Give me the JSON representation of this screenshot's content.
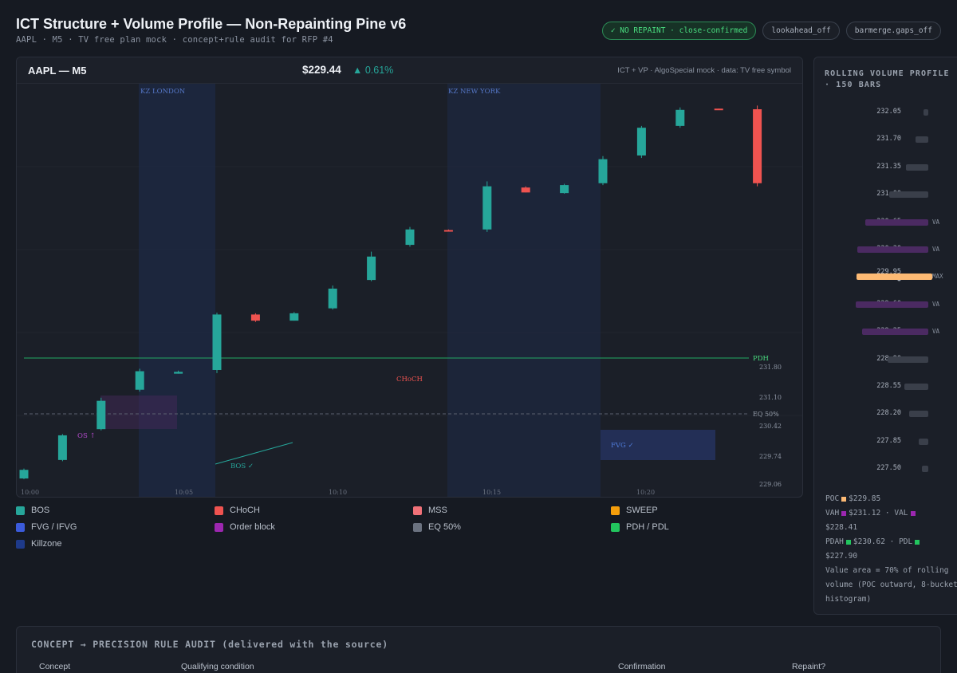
{
  "header": {
    "title": "ICT Structure + Volume Profile — Non-Repainting Pine v6",
    "subtitle": "AAPL · M5 · TV free plan mock · concept+rule audit for RFP #4",
    "pills": [
      "✓ NO REPAINT · close-confirmed",
      "lookahead_off",
      "barmerge.gaps_off"
    ]
  },
  "chart": {
    "symbol": "AAPL — M5",
    "price": "$229.44",
    "change": "▲ 0.61%",
    "meta": "ICT + VP · AlgoSpecial mock · data: TV free symbol"
  },
  "chart_data": {
    "type": "candlestick",
    "time_labels": [
      "10:00",
      "10:05",
      "10:10",
      "10:15",
      "10:20"
    ],
    "y_tick_labels": [
      "231.80",
      "231.10",
      "230.42",
      "229.74",
      "229.06"
    ],
    "killzones": [
      "KZ LONDON",
      "KZ NEW YORK"
    ],
    "candles": [
      {
        "o": 229.04,
        "c": 229.18,
        "h": 229.2,
        "l": 229.03,
        "color": "up"
      },
      {
        "o": 229.34,
        "c": 229.74,
        "h": 229.76,
        "l": 229.32,
        "color": "up"
      },
      {
        "o": 229.84,
        "c": 230.3,
        "h": 230.35,
        "l": 229.82,
        "color": "up"
      },
      {
        "o": 230.48,
        "c": 230.78,
        "h": 230.82,
        "l": 230.45,
        "color": "up"
      },
      {
        "o": 230.74,
        "c": 230.77,
        "h": 230.79,
        "l": 230.74,
        "color": "up"
      },
      {
        "o": 230.8,
        "c": 231.7,
        "h": 231.73,
        "l": 230.75,
        "color": "up"
      },
      {
        "o": 231.6,
        "c": 231.7,
        "h": 231.72,
        "l": 231.58,
        "color": "down"
      },
      {
        "o": 231.6,
        "c": 231.72,
        "h": 231.74,
        "l": 231.6,
        "color": "up"
      },
      {
        "o": 231.8,
        "c": 232.12,
        "h": 232.17,
        "l": 231.78,
        "color": "up"
      },
      {
        "o": 232.26,
        "c": 232.64,
        "h": 232.72,
        "l": 232.24,
        "color": "up"
      },
      {
        "o": 232.83,
        "c": 233.08,
        "h": 233.12,
        "l": 232.8,
        "color": "up"
      },
      {
        "o": 233.07,
        "c": 233.05,
        "h": 233.08,
        "l": 233.05,
        "color": "down"
      },
      {
        "o": 233.08,
        "c": 233.78,
        "h": 233.86,
        "l": 233.04,
        "color": "up"
      },
      {
        "o": 233.76,
        "c": 233.68,
        "h": 233.78,
        "l": 233.68,
        "color": "down"
      },
      {
        "o": 233.67,
        "c": 233.8,
        "h": 233.82,
        "l": 233.66,
        "color": "up"
      },
      {
        "o": 233.83,
        "c": 234.22,
        "h": 234.27,
        "l": 233.8,
        "color": "up"
      },
      {
        "o": 234.28,
        "c": 234.73,
        "h": 234.76,
        "l": 234.24,
        "color": "up"
      },
      {
        "o": 234.76,
        "c": 235.02,
        "h": 235.06,
        "l": 234.73,
        "color": "up"
      },
      {
        "o": 235.04,
        "c": 235.03,
        "h": 235.04,
        "l": 235.03,
        "color": "down"
      },
      {
        "o": 235.03,
        "c": 233.83,
        "h": 235.09,
        "l": 233.78,
        "color": "down"
      }
    ],
    "labels": {
      "pdh": "PDH",
      "eq": "EQ 50%",
      "choch": "CHoCH",
      "os": "OS ↑",
      "bos": "BOS ✓",
      "fvg": "FVG ✓"
    },
    "legend": [
      {
        "name": "BOS",
        "color": "#26a69a"
      },
      {
        "name": "CHoCH",
        "color": "#ef5350"
      },
      {
        "name": "MSS",
        "color": "#f07178"
      },
      {
        "name": "SWEEP",
        "color": "#f59e0b"
      },
      {
        "name": "FVG / IFVG",
        "color": "#3b5bdb"
      },
      {
        "name": "Order block",
        "color": "#9c27b0"
      },
      {
        "name": "EQ 50%",
        "color": "#6b7280"
      },
      {
        "name": "PDH / PDL",
        "color": "#22c55e"
      },
      {
        "name": "Killzone",
        "color": "#1e3a8a"
      }
    ]
  },
  "volume_profile": {
    "title": "ROLLING VOLUME PROFILE · 150 BARS",
    "rows": [
      {
        "price": "232.05",
        "volume": 3,
        "tag": ""
      },
      {
        "price": "231.70",
        "volume": 8,
        "tag": ""
      },
      {
        "price": "231.35",
        "volume": 14,
        "tag": ""
      },
      {
        "price": "231.00",
        "volume": 24,
        "tag": ""
      },
      {
        "price": "230.65",
        "volume": 39,
        "tag": "VA"
      },
      {
        "price": "230.30",
        "volume": 44,
        "tag": "VA"
      },
      {
        "price": "229.95 ●",
        "volume": 47,
        "tag": "MAX"
      },
      {
        "price": "229.60",
        "volume": 45,
        "tag": "VA"
      },
      {
        "price": "229.25",
        "volume": 41,
        "tag": "VA"
      },
      {
        "price": "228.90",
        "volume": 25,
        "tag": ""
      },
      {
        "price": "228.55",
        "volume": 15,
        "tag": ""
      },
      {
        "price": "228.20",
        "volume": 12,
        "tag": ""
      },
      {
        "price": "227.85",
        "volume": 6,
        "tag": ""
      },
      {
        "price": "227.50",
        "volume": 4,
        "tag": ""
      }
    ],
    "footer": {
      "poc": "POC",
      "poc_val": "$229.85",
      "vah": "VAH",
      "vah_val": "$231.12 · VAL",
      "val_val": "$228.41",
      "pdah": "PDAH",
      "pdah_val": "$230.62 · PDL",
      "pdl_val": "$227.90",
      "note": "Value area = 70% of rolling volume (POC outward, 8-bucket histogram)"
    }
  },
  "audit": {
    "title": "CONCEPT → PRECISION RULE AUDIT (delivered with the source)",
    "columns": [
      "Concept",
      "Qualifying condition",
      "Confirmation",
      "Repaint?"
    ]
  }
}
